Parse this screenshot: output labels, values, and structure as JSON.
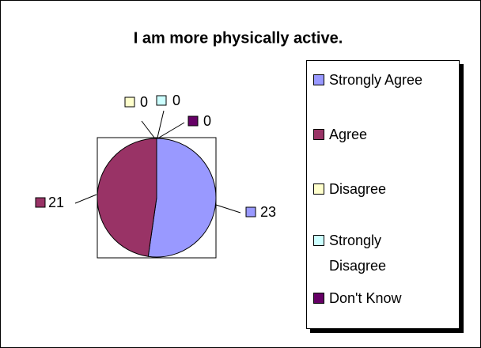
{
  "chart_data": {
    "type": "pie",
    "title": "I am more physically active.",
    "categories": [
      "Strongly Agree",
      "Agree",
      "Disagree",
      "Strongly Disagree",
      "Don't Know"
    ],
    "values": [
      23,
      21,
      0,
      0,
      0
    ],
    "colors": [
      "#9999ff",
      "#993366",
      "#ffffcc",
      "#ccffff",
      "#660066"
    ],
    "legend": "right"
  }
}
